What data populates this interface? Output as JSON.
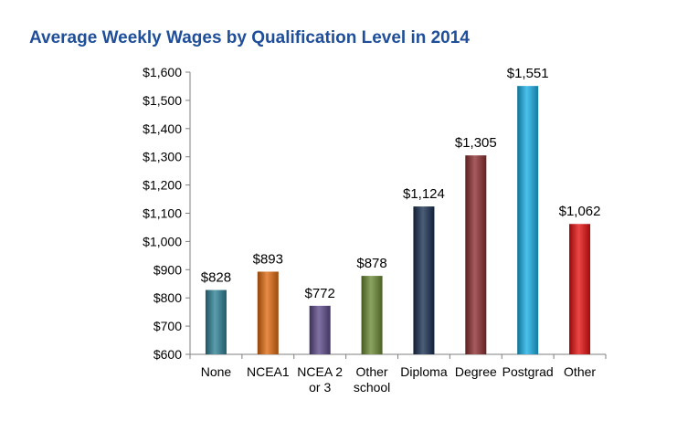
{
  "chart_data": {
    "type": "bar",
    "title": "Average Weekly Wages by Qualification Level in 2014",
    "xlabel": "",
    "ylabel": "",
    "ylim": [
      600,
      1600
    ],
    "yticks": [
      600,
      700,
      800,
      900,
      1000,
      1100,
      1200,
      1300,
      1400,
      1500,
      1600
    ],
    "ytick_labels": [
      "$600",
      "$700",
      "$800",
      "$900",
      "$1,000",
      "$1,100",
      "$1,200",
      "$1,300",
      "$1,400",
      "$1,500",
      "$1,600"
    ],
    "grid": false,
    "legend": "none",
    "categories": [
      [
        "None"
      ],
      [
        "NCEA1"
      ],
      [
        "NCEA 2",
        "or 3"
      ],
      [
        "Other",
        "school"
      ],
      [
        "Diploma"
      ],
      [
        "Degree"
      ],
      [
        "Postgrad"
      ],
      [
        "Other"
      ]
    ],
    "values": [
      828,
      893,
      772,
      878,
      1124,
      1305,
      1551,
      1062
    ],
    "value_labels": [
      "$828",
      "$893",
      "$772",
      "$878",
      "$1,124",
      "$1,305",
      "$1,551",
      "$1,062"
    ],
    "colors": [
      "#2e8196",
      "#e06a10",
      "#5d4a8a",
      "#6b8a35",
      "#1a2f52",
      "#8e2e30",
      "#19b0e6",
      "#e81010"
    ]
  }
}
